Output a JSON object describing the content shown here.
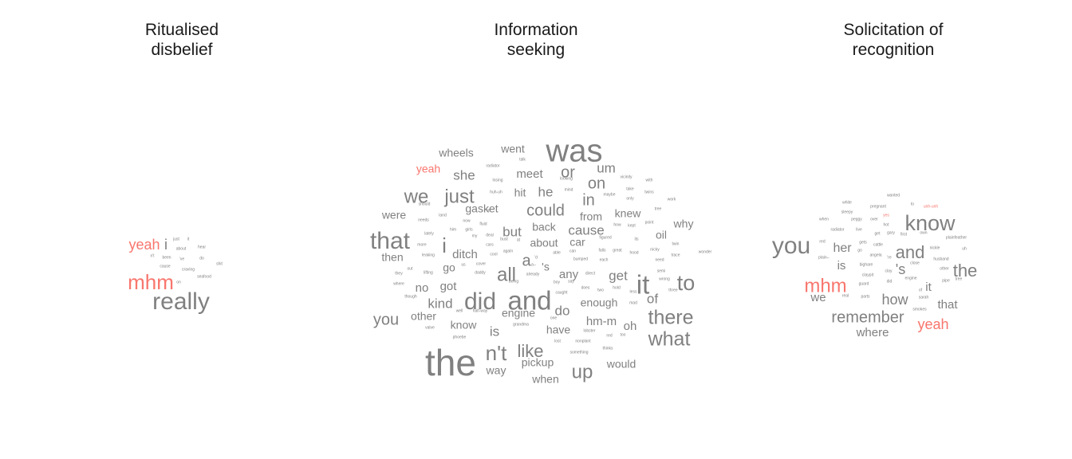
{
  "colors": {
    "common": "#808080",
    "distinctive": "#F8766D",
    "title": "#1a1a1a"
  },
  "chart_data": [
    {
      "type": "wordcloud",
      "title": "Ritualised\ndisbelief",
      "words": [
        {
          "w": "really",
          "f": 30,
          "c": "common"
        },
        {
          "w": "mhm",
          "f": 26,
          "c": "distinctive"
        },
        {
          "w": "yeah",
          "f": 18,
          "c": "distinctive"
        },
        {
          "w": "i",
          "f": 18,
          "c": "common"
        },
        {
          "w": "just",
          "f": 5,
          "c": "common"
        },
        {
          "w": "it",
          "f": 5,
          "c": "common"
        },
        {
          "w": "about",
          "f": 5,
          "c": "common"
        },
        {
          "w": "hear",
          "f": 5,
          "c": "common"
        },
        {
          "w": "n't",
          "f": 5,
          "c": "common"
        },
        {
          "w": "been",
          "f": 5,
          "c": "common"
        },
        {
          "w": "'ve",
          "f": 5,
          "c": "common"
        },
        {
          "w": "do",
          "f": 5,
          "c": "common"
        },
        {
          "w": "shit",
          "f": 5,
          "c": "common"
        },
        {
          "w": "cause",
          "f": 5,
          "c": "common"
        },
        {
          "w": "craving",
          "f": 5,
          "c": "common"
        },
        {
          "w": "on",
          "f": 5,
          "c": "common"
        },
        {
          "w": "seafood",
          "f": 5,
          "c": "common"
        }
      ]
    },
    {
      "type": "wordcloud",
      "title": "Information\nseeking",
      "words": [
        {
          "w": "the",
          "f": 46,
          "c": "common"
        },
        {
          "w": "was",
          "f": 40,
          "c": "common"
        },
        {
          "w": "and",
          "f": 33,
          "c": "common"
        },
        {
          "w": "it",
          "f": 33,
          "c": "common"
        },
        {
          "w": "did",
          "f": 30,
          "c": "common"
        },
        {
          "w": "that",
          "f": 30,
          "c": "common"
        },
        {
          "w": "to",
          "f": 27,
          "c": "common"
        },
        {
          "w": "n't",
          "f": 26,
          "c": "common"
        },
        {
          "w": "i",
          "f": 26,
          "c": "common"
        },
        {
          "w": "there",
          "f": 25,
          "c": "common"
        },
        {
          "w": "what",
          "f": 25,
          "c": "common"
        },
        {
          "w": "we",
          "f": 24,
          "c": "common"
        },
        {
          "w": "just",
          "f": 24,
          "c": "common"
        },
        {
          "w": "all",
          "f": 24,
          "c": "common"
        },
        {
          "w": "up",
          "f": 24,
          "c": "common"
        },
        {
          "w": "like",
          "f": 22,
          "c": "common"
        },
        {
          "w": "could",
          "f": 20,
          "c": "common"
        },
        {
          "w": "or",
          "f": 20,
          "c": "common"
        },
        {
          "w": "in",
          "f": 20,
          "c": "common"
        },
        {
          "w": "on",
          "f": 20,
          "c": "common"
        },
        {
          "w": "you",
          "f": 20,
          "c": "common"
        },
        {
          "w": "a",
          "f": 20,
          "c": "common"
        },
        {
          "w": "um",
          "f": 17,
          "c": "common"
        },
        {
          "w": "she",
          "f": 17,
          "c": "common"
        },
        {
          "w": "he",
          "f": 17,
          "c": "common"
        },
        {
          "w": "but",
          "f": 17,
          "c": "common"
        },
        {
          "w": "cause",
          "f": 17,
          "c": "common"
        },
        {
          "w": "kind",
          "f": 17,
          "c": "common"
        },
        {
          "w": "do",
          "f": 17,
          "c": "common"
        },
        {
          "w": "is",
          "f": 17,
          "c": "common"
        },
        {
          "w": "get",
          "f": 17,
          "c": "common"
        },
        {
          "w": "of",
          "f": 17,
          "c": "common"
        },
        {
          "w": "any",
          "f": 15,
          "c": "common"
        },
        {
          "w": "hm-m",
          "f": 15,
          "c": "common"
        },
        {
          "w": "oh",
          "f": 15,
          "c": "common"
        },
        {
          "w": "ditch",
          "f": 15,
          "c": "common"
        },
        {
          "w": "got",
          "f": 15,
          "c": "common"
        },
        {
          "w": "no",
          "f": 15,
          "c": "common"
        },
        {
          "w": "meet",
          "f": 15,
          "c": "common"
        },
        {
          "w": "went",
          "f": 14,
          "c": "common"
        },
        {
          "w": "wheels",
          "f": 14,
          "c": "common"
        },
        {
          "w": "yeah",
          "f": 14,
          "c": "distinctive"
        },
        {
          "w": "gasket",
          "f": 14,
          "c": "common"
        },
        {
          "w": "hit",
          "f": 14,
          "c": "common"
        },
        {
          "w": "knew",
          "f": 14,
          "c": "common"
        },
        {
          "w": "from",
          "f": 14,
          "c": "common"
        },
        {
          "w": "why",
          "f": 14,
          "c": "common"
        },
        {
          "w": "oil",
          "f": 14,
          "c": "common"
        },
        {
          "w": "were",
          "f": 14,
          "c": "common"
        },
        {
          "w": "then",
          "f": 14,
          "c": "common"
        },
        {
          "w": "back",
          "f": 14,
          "c": "common"
        },
        {
          "w": "about",
          "f": 14,
          "c": "common"
        },
        {
          "w": "car",
          "f": 14,
          "c": "common"
        },
        {
          "w": "'s",
          "f": 14,
          "c": "common"
        },
        {
          "w": "go",
          "f": 14,
          "c": "common"
        },
        {
          "w": "other",
          "f": 14,
          "c": "common"
        },
        {
          "w": "know",
          "f": 14,
          "c": "common"
        },
        {
          "w": "engine",
          "f": 14,
          "c": "common"
        },
        {
          "w": "have",
          "f": 14,
          "c": "common"
        },
        {
          "w": "enough",
          "f": 14,
          "c": "common"
        },
        {
          "w": "pickup",
          "f": 14,
          "c": "common"
        },
        {
          "w": "way",
          "f": 14,
          "c": "common"
        },
        {
          "w": "when",
          "f": 14,
          "c": "common"
        },
        {
          "w": "would",
          "f": 14,
          "c": "common"
        },
        {
          "w": "radiator",
          "f": 5,
          "c": "common"
        },
        {
          "w": "talk",
          "f": 5,
          "c": "common"
        },
        {
          "w": "losing",
          "f": 5,
          "c": "common"
        },
        {
          "w": "looking",
          "f": 5,
          "c": "common"
        },
        {
          "w": "vicinity",
          "f": 5,
          "c": "common"
        },
        {
          "w": "with",
          "f": 5,
          "c": "common"
        },
        {
          "w": "huh-uh",
          "f": 5,
          "c": "common"
        },
        {
          "w": "mind",
          "f": 5,
          "c": "common"
        },
        {
          "w": "take",
          "f": 5,
          "c": "common"
        },
        {
          "w": "twins",
          "f": 5,
          "c": "common"
        },
        {
          "w": "maybe",
          "f": 5,
          "c": "common"
        },
        {
          "w": "only",
          "f": 5,
          "c": "common"
        },
        {
          "w": "work",
          "f": 5,
          "c": "common"
        },
        {
          "w": "should",
          "f": 5,
          "c": "common"
        },
        {
          "w": "'re",
          "f": 5,
          "c": "common"
        },
        {
          "w": "tree",
          "f": 5,
          "c": "common"
        },
        {
          "w": "land",
          "f": 5,
          "c": "common"
        },
        {
          "w": "needs",
          "f": 5,
          "c": "common"
        },
        {
          "w": "now",
          "f": 5,
          "c": "common"
        },
        {
          "w": "how",
          "f": 5,
          "c": "common"
        },
        {
          "w": "kept",
          "f": 5,
          "c": "common"
        },
        {
          "w": "point",
          "f": 5,
          "c": "common"
        },
        {
          "w": "him",
          "f": 5,
          "c": "common"
        },
        {
          "w": "girls",
          "f": 5,
          "c": "common"
        },
        {
          "w": "fluid",
          "f": 5,
          "c": "common"
        },
        {
          "w": "lately",
          "f": 5,
          "c": "common"
        },
        {
          "w": "my",
          "f": 5,
          "c": "common"
        },
        {
          "w": "deal",
          "f": 5,
          "c": "common"
        },
        {
          "w": "bust",
          "f": 5,
          "c": "common"
        },
        {
          "w": "at",
          "f": 5,
          "c": "common"
        },
        {
          "w": "figured",
          "f": 5,
          "c": "common"
        },
        {
          "w": "its",
          "f": 5,
          "c": "common"
        },
        {
          "w": "twin",
          "f": 5,
          "c": "common"
        },
        {
          "w": "more",
          "f": 5,
          "c": "common"
        },
        {
          "w": "cars",
          "f": 5,
          "c": "common"
        },
        {
          "w": "again",
          "f": 5,
          "c": "common"
        },
        {
          "w": "able",
          "f": 5,
          "c": "common"
        },
        {
          "w": "can",
          "f": 5,
          "c": "common"
        },
        {
          "w": "falls",
          "f": 5,
          "c": "common"
        },
        {
          "w": "great",
          "f": 5,
          "c": "common"
        },
        {
          "w": "hood",
          "f": 5,
          "c": "common"
        },
        {
          "w": "nicky",
          "f": 5,
          "c": "common"
        },
        {
          "w": "trace",
          "f": 5,
          "c": "common"
        },
        {
          "w": "wonder",
          "f": 5,
          "c": "common"
        },
        {
          "w": "leaking",
          "f": 5,
          "c": "common"
        },
        {
          "w": "cool",
          "f": 5,
          "c": "common"
        },
        {
          "w": "'d",
          "f": 5,
          "c": "common"
        },
        {
          "w": "bumped",
          "f": 5,
          "c": "common"
        },
        {
          "w": "each",
          "f": 5,
          "c": "common"
        },
        {
          "w": "need",
          "f": 5,
          "c": "common"
        },
        {
          "w": "us",
          "f": 5,
          "c": "common"
        },
        {
          "w": "cover",
          "f": 5,
          "c": "common"
        },
        {
          "w": "direct",
          "f": 5,
          "c": "common"
        },
        {
          "w": "semi",
          "f": 5,
          "c": "common"
        },
        {
          "w": "out",
          "f": 5,
          "c": "common"
        },
        {
          "w": "lifting",
          "f": 5,
          "c": "common"
        },
        {
          "w": "daddy",
          "f": 5,
          "c": "common"
        },
        {
          "w": "a--",
          "f": 5,
          "c": "common"
        },
        {
          "w": "already",
          "f": 5,
          "c": "common"
        },
        {
          "w": "wrong",
          "f": 5,
          "c": "common"
        },
        {
          "w": "they",
          "f": 5,
          "c": "common"
        },
        {
          "w": "being",
          "f": 5,
          "c": "common"
        },
        {
          "w": "boy",
          "f": 5,
          "c": "common"
        },
        {
          "w": "say",
          "f": 5,
          "c": "common"
        },
        {
          "w": "does",
          "f": 5,
          "c": "common"
        },
        {
          "w": "hold",
          "f": 5,
          "c": "common"
        },
        {
          "w": "where",
          "f": 5,
          "c": "common"
        },
        {
          "w": "two",
          "f": 5,
          "c": "common"
        },
        {
          "w": "less",
          "f": 5,
          "c": "common"
        },
        {
          "w": "three",
          "f": 5,
          "c": "common"
        },
        {
          "w": "caught",
          "f": 5,
          "c": "common"
        },
        {
          "w": "though",
          "f": 5,
          "c": "common"
        },
        {
          "w": "mad",
          "f": 5,
          "c": "common"
        },
        {
          "w": "well",
          "f": 5,
          "c": "common"
        },
        {
          "w": "half-way",
          "f": 5,
          "c": "common"
        },
        {
          "w": "one",
          "f": 5,
          "c": "common"
        },
        {
          "w": "valve",
          "f": 5,
          "c": "common"
        },
        {
          "w": "grandma",
          "f": 5,
          "c": "common"
        },
        {
          "w": "lobster",
          "f": 5,
          "c": "common"
        },
        {
          "w": "phoebe",
          "f": 5,
          "c": "common"
        },
        {
          "w": "red",
          "f": 5,
          "c": "common"
        },
        {
          "w": "too",
          "f": 5,
          "c": "common"
        },
        {
          "w": "lost",
          "f": 5,
          "c": "common"
        },
        {
          "w": "nonplant",
          "f": 5,
          "c": "common"
        },
        {
          "w": "thinks",
          "f": 5,
          "c": "common"
        },
        {
          "w": "something",
          "f": 5,
          "c": "common"
        }
      ]
    },
    {
      "type": "wordcloud",
      "title": "Solicitation of\nrecognition",
      "words": [
        {
          "w": "you",
          "f": 30,
          "c": "common"
        },
        {
          "w": "know",
          "f": 27,
          "c": "common"
        },
        {
          "w": "mhm",
          "f": 24,
          "c": "distinctive"
        },
        {
          "w": "and",
          "f": 22,
          "c": "common"
        },
        {
          "w": "the",
          "f": 22,
          "c": "common"
        },
        {
          "w": "remember",
          "f": 20,
          "c": "common"
        },
        {
          "w": "yeah",
          "f": 18,
          "c": "distinctive"
        },
        {
          "w": "how",
          "f": 18,
          "c": "common"
        },
        {
          "w": "her",
          "f": 16,
          "c": "common"
        },
        {
          "w": "is",
          "f": 15,
          "c": "common"
        },
        {
          "w": "'s",
          "f": 18,
          "c": "common"
        },
        {
          "w": "it",
          "f": 15,
          "c": "common"
        },
        {
          "w": "we",
          "f": 15,
          "c": "common"
        },
        {
          "w": "that",
          "f": 15,
          "c": "common"
        },
        {
          "w": "where",
          "f": 15,
          "c": "common"
        },
        {
          "w": "wanted",
          "f": 5,
          "c": "common"
        },
        {
          "w": "white",
          "f": 5,
          "c": "common"
        },
        {
          "w": "to",
          "f": 5,
          "c": "common"
        },
        {
          "w": "unh-unh",
          "f": 5,
          "c": "distinctive"
        },
        {
          "w": "sleepy",
          "f": 5,
          "c": "common"
        },
        {
          "w": "pregnant",
          "f": 5,
          "c": "common"
        },
        {
          "w": "when",
          "f": 5,
          "c": "common"
        },
        {
          "w": "peggy",
          "f": 5,
          "c": "common"
        },
        {
          "w": "over",
          "f": 5,
          "c": "common"
        },
        {
          "w": "yes",
          "f": 5,
          "c": "distinctive"
        },
        {
          "w": "radiator",
          "f": 5,
          "c": "common"
        },
        {
          "w": "live",
          "f": 5,
          "c": "common"
        },
        {
          "w": "hot",
          "f": 5,
          "c": "common"
        },
        {
          "w": "gary",
          "f": 5,
          "c": "common"
        },
        {
          "w": "first",
          "f": 5,
          "c": "common"
        },
        {
          "w": "own",
          "f": 5,
          "c": "common"
        },
        {
          "w": "plainfeather",
          "f": 5,
          "c": "common"
        },
        {
          "w": "get",
          "f": 5,
          "c": "common"
        },
        {
          "w": "red",
          "f": 5,
          "c": "common"
        },
        {
          "w": "gets",
          "f": 5,
          "c": "common"
        },
        {
          "w": "cattle",
          "f": 5,
          "c": "common"
        },
        {
          "w": "go",
          "f": 5,
          "c": "common"
        },
        {
          "w": "nickle",
          "f": 5,
          "c": "common"
        },
        {
          "w": "uh",
          "f": 5,
          "c": "common"
        },
        {
          "w": "plain--",
          "f": 5,
          "c": "common"
        },
        {
          "w": "'re",
          "f": 5,
          "c": "common"
        },
        {
          "w": "close",
          "f": 5,
          "c": "common"
        },
        {
          "w": "husband",
          "f": 5,
          "c": "common"
        },
        {
          "w": "angela",
          "f": 5,
          "c": "common"
        },
        {
          "w": "bighare",
          "f": 5,
          "c": "common"
        },
        {
          "w": "clay",
          "f": 5,
          "c": "common"
        },
        {
          "w": "other",
          "f": 5,
          "c": "common"
        },
        {
          "w": "guard",
          "f": 5,
          "c": "common"
        },
        {
          "w": "claypit",
          "f": 5,
          "c": "common"
        },
        {
          "w": "engine",
          "f": 5,
          "c": "common"
        },
        {
          "w": "pipe",
          "f": 5,
          "c": "common"
        },
        {
          "w": "tree",
          "f": 5,
          "c": "common"
        },
        {
          "w": "did",
          "f": 5,
          "c": "common"
        },
        {
          "w": "of",
          "f": 5,
          "c": "common"
        },
        {
          "w": "real",
          "f": 5,
          "c": "common"
        },
        {
          "w": "parts",
          "f": 5,
          "c": "common"
        },
        {
          "w": "sarah",
          "f": 5,
          "c": "common"
        },
        {
          "w": "smokes",
          "f": 5,
          "c": "common"
        }
      ]
    }
  ]
}
